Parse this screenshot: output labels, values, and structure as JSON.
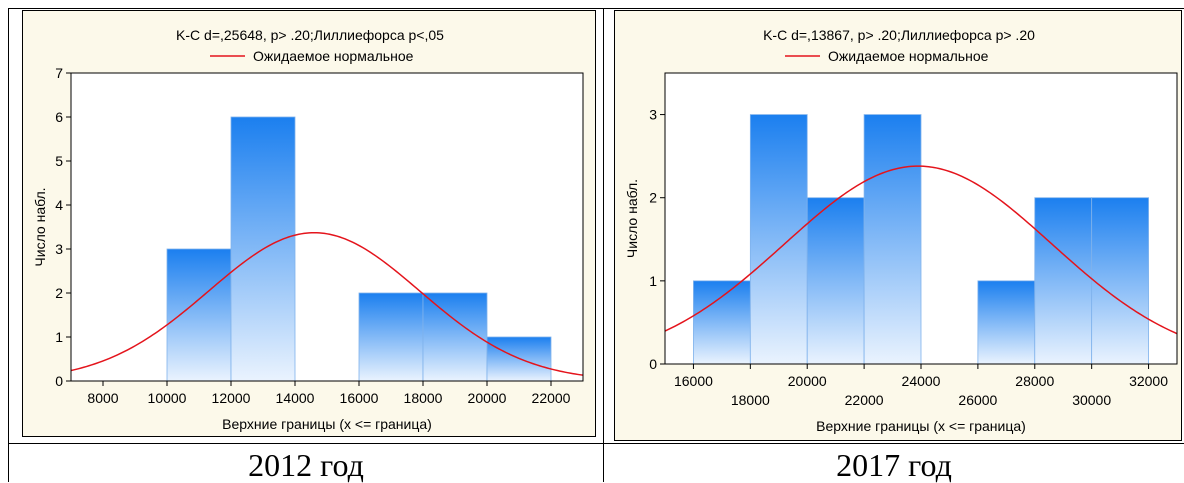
{
  "captions": [
    "2012 год",
    "2017 год"
  ],
  "chart_data": [
    {
      "type": "bar",
      "title": "K-C d=,25648, p> .20;Лиллиефорса p<,05",
      "legend": [
        "Ожидаемое нормальное"
      ],
      "legend_placement": "top",
      "xlabel": "Верхние границы (x <= граница)",
      "ylabel": "Число набл.",
      "xlim": [
        7000,
        23000
      ],
      "ylim": [
        0,
        7
      ],
      "xticks": [
        8000,
        10000,
        12000,
        14000,
        16000,
        18000,
        20000,
        22000
      ],
      "xtick_labels": [
        "8000",
        "10000",
        "12000",
        "14000",
        "16000",
        "18000",
        "20000",
        "22000"
      ],
      "yticks": [
        0,
        1,
        2,
        3,
        4,
        5,
        6,
        7
      ],
      "ytick_labels": [
        "0",
        "1",
        "2",
        "3",
        "4",
        "5",
        "6",
        "7"
      ],
      "bins": [
        {
          "from": 10000,
          "to": 12000,
          "count": 3
        },
        {
          "from": 12000,
          "to": 14000,
          "count": 6
        },
        {
          "from": 14000,
          "to": 16000,
          "count": 0
        },
        {
          "from": 16000,
          "to": 18000,
          "count": 2
        },
        {
          "from": 18000,
          "to": 20000,
          "count": 2
        },
        {
          "from": 20000,
          "to": 22000,
          "count": 1
        }
      ],
      "normal_curve": {
        "mean": 14600,
        "sd": 3300,
        "peak": 3.37
      },
      "grid": false,
      "colors": {
        "bar_top": "#1b7fef",
        "bar_bottom": "#eaf3fe",
        "bar_edge": "#7fb2ec",
        "curve": "#e4141c"
      }
    },
    {
      "type": "bar",
      "title": "K-C d=,13867, p> .20;Лиллиефорса p> .20",
      "legend": [
        "Ожидаемое нормальное"
      ],
      "legend_placement": "top",
      "xlabel": "Верхние границы (x <= граница)",
      "ylabel": "Число набл.",
      "xlim": [
        15000,
        33000
      ],
      "ylim": [
        0,
        3.5
      ],
      "xticks": [
        16000,
        18000,
        20000,
        22000,
        24000,
        26000,
        28000,
        30000,
        32000
      ],
      "xtick_labels": [
        "16000",
        "18000",
        "20000",
        "22000",
        "24000",
        "26000",
        "28000",
        "30000",
        "32000"
      ],
      "yticks": [
        0,
        1,
        2,
        3
      ],
      "ytick_labels": [
        "0",
        "1",
        "2",
        "3"
      ],
      "bins": [
        {
          "from": 16000,
          "to": 18000,
          "count": 1
        },
        {
          "from": 18000,
          "to": 20000,
          "count": 3
        },
        {
          "from": 20000,
          "to": 22000,
          "count": 2
        },
        {
          "from": 22000,
          "to": 24000,
          "count": 3
        },
        {
          "from": 24000,
          "to": 26000,
          "count": 0
        },
        {
          "from": 26000,
          "to": 28000,
          "count": 1
        },
        {
          "from": 28000,
          "to": 30000,
          "count": 2
        },
        {
          "from": 30000,
          "to": 32000,
          "count": 2
        }
      ],
      "normal_curve": {
        "mean": 23900,
        "sd": 4700,
        "peak": 2.38
      },
      "grid": false,
      "colors": {
        "bar_top": "#1b7fef",
        "bar_bottom": "#eaf3fe",
        "bar_edge": "#7fb2ec",
        "curve": "#e4141c"
      }
    }
  ]
}
